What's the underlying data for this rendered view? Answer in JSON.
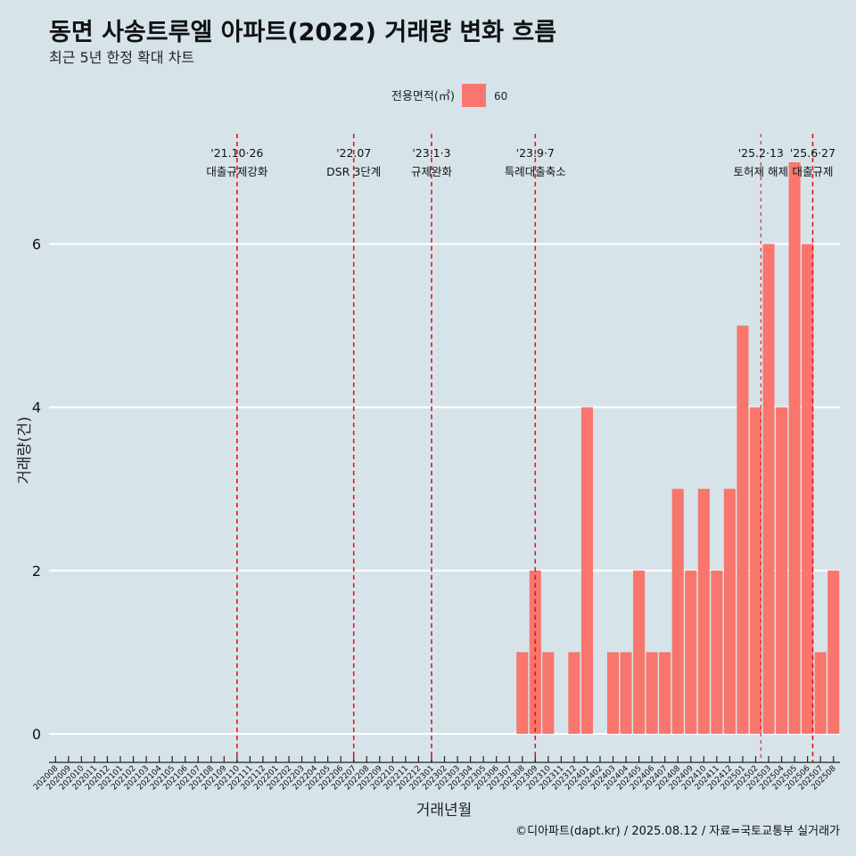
{
  "title": "동면 사송트루엘 아파트(2022) 거래량 변화 흐름",
  "subtitle": "최근 5년 한정 확대 차트",
  "caption": "©디아파트(dapt.kr) / 2025.08.12 / 자료=국토교통부 실거래가",
  "colors": {
    "bar": "#f8766d",
    "event_line": "#e8141a",
    "background": "#d6e4ea",
    "grid": "#ffffff"
  },
  "chart_data": {
    "type": "bar",
    "title": "동면 사송트루엘 아파트(2022) 거래량 변화 흐름",
    "subtitle": "최근 5년 한정 확대 차트",
    "xlabel": "거래년월",
    "ylabel": "거래량(건)",
    "ylim": [
      -0.35,
      7.35
    ],
    "yticks": [
      0,
      2,
      4,
      6
    ],
    "grid": true,
    "legend": {
      "title": "전용면적(㎡)",
      "position": "top",
      "entries": [
        "60"
      ]
    },
    "categories": [
      "202008",
      "202009",
      "202010",
      "202011",
      "202012",
      "202101",
      "202102",
      "202103",
      "202104",
      "202105",
      "202106",
      "202107",
      "202108",
      "202109",
      "202110",
      "202111",
      "202112",
      "202201",
      "202202",
      "202203",
      "202204",
      "202205",
      "202206",
      "202207",
      "202208",
      "202209",
      "202210",
      "202211",
      "202212",
      "202301",
      "202302",
      "202303",
      "202304",
      "202305",
      "202306",
      "202307",
      "202308",
      "202309",
      "202310",
      "202311",
      "202312",
      "202401",
      "202402",
      "202403",
      "202404",
      "202405",
      "202406",
      "202407",
      "202408",
      "202409",
      "202410",
      "202411",
      "202412",
      "202501",
      "202502",
      "202503",
      "202504",
      "202505",
      "202506",
      "202507",
      "202508"
    ],
    "series": [
      {
        "name": "60",
        "values": [
          0,
          0,
          0,
          0,
          0,
          0,
          0,
          0,
          0,
          0,
          0,
          0,
          0,
          0,
          0,
          0,
          0,
          0,
          0,
          0,
          0,
          0,
          0,
          0,
          0,
          0,
          0,
          0,
          0,
          0,
          0,
          0,
          0,
          0,
          0,
          0,
          1,
          2,
          1,
          0,
          1,
          4,
          0,
          1,
          1,
          2,
          1,
          1,
          3,
          2,
          3,
          2,
          3,
          5,
          4,
          6,
          4,
          7,
          6,
          1,
          2
        ]
      }
    ],
    "events": [
      {
        "date_label": "'21.10·26",
        "label": "대출규제강화",
        "position": 14.0,
        "style": "major"
      },
      {
        "date_label": "'22.07",
        "label": "DSR 3단계",
        "position": 23.0,
        "style": "major"
      },
      {
        "date_label": "'23.1·3",
        "label": "규제완화",
        "position": 29.0,
        "style": "major"
      },
      {
        "date_label": "'23.9·7",
        "label": "특례대출축소",
        "position": 37.0,
        "style": "major"
      },
      {
        "date_label": "'25.2·13",
        "label": "토허제 해제",
        "position": 54.4,
        "style": "minor"
      },
      {
        "date_label": "'25.6·27",
        "label": "대출규제",
        "position": 58.4,
        "style": "major"
      }
    ]
  }
}
